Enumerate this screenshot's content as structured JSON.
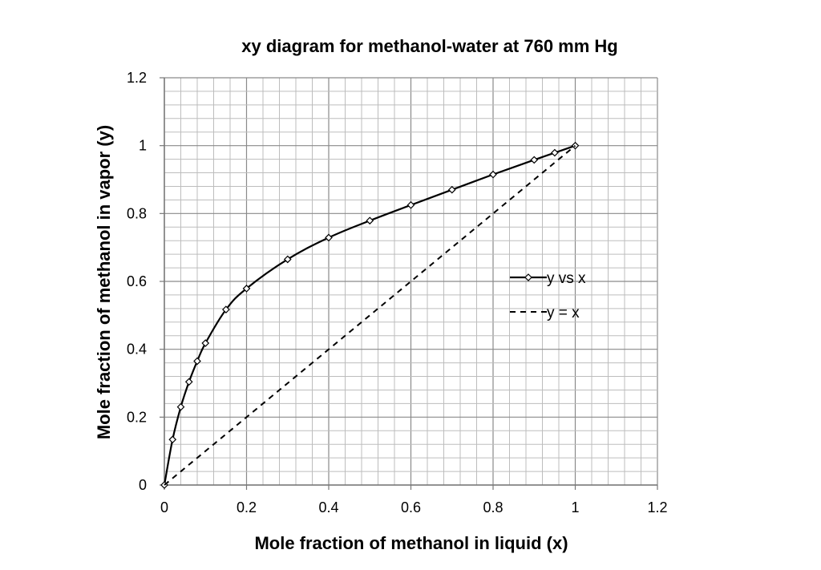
{
  "chart_data": {
    "type": "scatter",
    "title": "xy diagram for methanol-water at 760 mm Hg",
    "xlabel": "Mole fraction of methanol in liquid (x)",
    "ylabel": "Mole fraction of methanol in vapor (y)",
    "xlim": [
      0,
      1.2
    ],
    "ylim": [
      0,
      1.2
    ],
    "x_ticks": [
      "0",
      "0.2",
      "0.4",
      "0.6",
      "0.8",
      "1",
      "1.2"
    ],
    "y_ticks": [
      "0",
      "0.2",
      "0.4",
      "0.6",
      "0.8",
      "1",
      "1.2"
    ],
    "minor_grid_step": 0.04,
    "major_grid_step": 0.2,
    "grid": true,
    "legend_position": "right",
    "series": [
      {
        "name": "y vs x",
        "style": "solid-smooth-diamond-markers",
        "color": "#000000",
        "x": [
          0,
          0.02,
          0.04,
          0.06,
          0.08,
          0.1,
          0.15,
          0.2,
          0.3,
          0.4,
          0.5,
          0.6,
          0.7,
          0.8,
          0.9,
          0.95,
          1.0
        ],
        "y": [
          0,
          0.134,
          0.23,
          0.304,
          0.365,
          0.418,
          0.517,
          0.579,
          0.665,
          0.729,
          0.779,
          0.825,
          0.87,
          0.915,
          0.958,
          0.979,
          1.0
        ]
      },
      {
        "name": "y = x",
        "style": "dashed",
        "color": "#000000",
        "x": [
          0,
          1
        ],
        "y": [
          0,
          1
        ]
      }
    ]
  }
}
